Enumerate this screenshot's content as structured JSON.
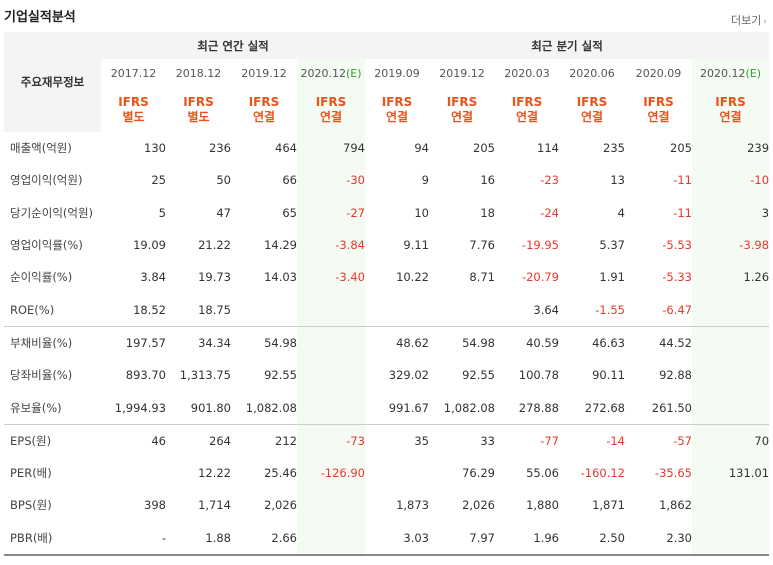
{
  "header": {
    "title": "기업실적분석",
    "more_label": "더보기",
    "more_arrow": "›"
  },
  "table": {
    "row_header": "주요재무정보",
    "group_annual": "최근 연간 실적",
    "group_quarter": "최근 분기 실적",
    "periods": [
      {
        "label": "2017.12",
        "e": ""
      },
      {
        "label": "2018.12",
        "e": ""
      },
      {
        "label": "2019.12",
        "e": ""
      },
      {
        "label": "2020.12",
        "e": "(E)"
      },
      {
        "label": "2019.09",
        "e": ""
      },
      {
        "label": "2019.12",
        "e": ""
      },
      {
        "label": "2020.03",
        "e": ""
      },
      {
        "label": "2020.06",
        "e": ""
      },
      {
        "label": "2020.09",
        "e": ""
      },
      {
        "label": "2020.12",
        "e": "(E)"
      }
    ],
    "ifrs": [
      {
        "top": "IFRS",
        "bottom": "별도"
      },
      {
        "top": "IFRS",
        "bottom": "별도"
      },
      {
        "top": "IFRS",
        "bottom": "연결"
      },
      {
        "top": "IFRS",
        "bottom": "연결"
      },
      {
        "top": "IFRS",
        "bottom": "연결"
      },
      {
        "top": "IFRS",
        "bottom": "연결"
      },
      {
        "top": "IFRS",
        "bottom": "연결"
      },
      {
        "top": "IFRS",
        "bottom": "연결"
      },
      {
        "top": "IFRS",
        "bottom": "연결"
      },
      {
        "top": "IFRS",
        "bottom": "연결"
      }
    ],
    "rows": [
      {
        "label": "매출액(억원)",
        "values": [
          "130",
          "236",
          "464",
          "794",
          "94",
          "205",
          "114",
          "235",
          "205",
          "239"
        ]
      },
      {
        "label": "영업이익(억원)",
        "values": [
          "25",
          "50",
          "66",
          "-30",
          "9",
          "16",
          "-23",
          "13",
          "-11",
          "-10"
        ]
      },
      {
        "label": "당기순이익(억원)",
        "values": [
          "5",
          "47",
          "65",
          "-27",
          "10",
          "18",
          "-24",
          "4",
          "-11",
          "3"
        ]
      },
      {
        "label": "영업이익률(%)",
        "values": [
          "19.09",
          "21.22",
          "14.29",
          "-3.84",
          "9.11",
          "7.76",
          "-19.95",
          "5.37",
          "-5.53",
          "-3.98"
        ]
      },
      {
        "label": "순이익률(%)",
        "values": [
          "3.84",
          "19.73",
          "14.03",
          "-3.40",
          "10.22",
          "8.71",
          "-20.79",
          "1.91",
          "-5.33",
          "1.26"
        ]
      },
      {
        "label": "ROE(%)",
        "values": [
          "18.52",
          "18.75",
          "",
          "",
          "",
          "",
          "3.64",
          "-1.55",
          "-6.47",
          ""
        ]
      },
      {
        "label": "부채비율(%)",
        "values": [
          "197.57",
          "34.34",
          "54.98",
          "",
          "48.62",
          "54.98",
          "40.59",
          "46.63",
          "44.52",
          ""
        ]
      },
      {
        "label": "당좌비율(%)",
        "values": [
          "893.70",
          "1,313.75",
          "92.55",
          "",
          "329.02",
          "92.55",
          "100.78",
          "90.11",
          "92.88",
          ""
        ]
      },
      {
        "label": "유보율(%)",
        "values": [
          "1,994.93",
          "901.80",
          "1,082.08",
          "",
          "991.67",
          "1,082.08",
          "278.88",
          "272.68",
          "261.50",
          ""
        ]
      },
      {
        "label": "EPS(원)",
        "values": [
          "46",
          "264",
          "212",
          "-73",
          "35",
          "33",
          "-77",
          "-14",
          "-57",
          "70"
        ]
      },
      {
        "label": "PER(배)",
        "values": [
          "",
          "12.22",
          "25.46",
          "-126.90",
          "",
          "76.29",
          "55.06",
          "-160.12",
          "-35.65",
          "131.01"
        ]
      },
      {
        "label": "BPS(원)",
        "values": [
          "398",
          "1,714",
          "2,026",
          "",
          "1,873",
          "2,026",
          "1,880",
          "1,871",
          "1,862",
          ""
        ]
      },
      {
        "label": "PBR(배)",
        "values": [
          "-",
          "1.88",
          "2.66",
          "",
          "3.03",
          "7.97",
          "1.96",
          "2.50",
          "2.30",
          ""
        ]
      }
    ]
  }
}
